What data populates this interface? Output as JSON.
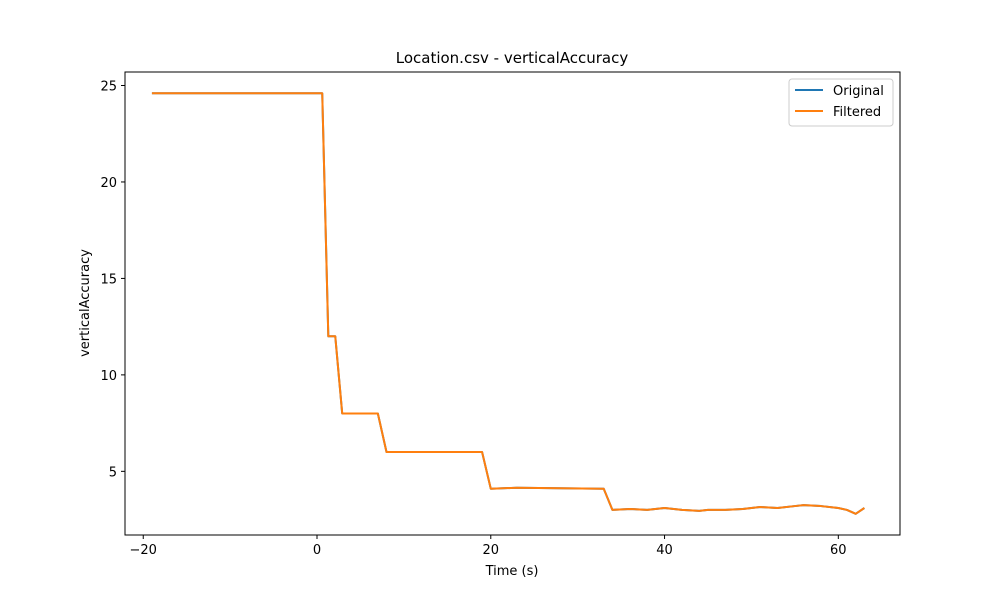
{
  "chart_data": {
    "type": "line",
    "title": "Location.csv - verticalAccuracy",
    "xlabel": "Time (s)",
    "ylabel": "verticalAccuracy",
    "xlim": [
      -22.1,
      67.1
    ],
    "ylim": [
      1.7,
      25.7
    ],
    "xticks": [
      -20,
      0,
      20,
      40,
      60
    ],
    "yticks": [
      5,
      10,
      15,
      20,
      25
    ],
    "xtick_labels": [
      "−20",
      "0",
      "20",
      "40",
      "60"
    ],
    "ytick_labels": [
      "5",
      "10",
      "15",
      "20",
      "25"
    ],
    "grid": false,
    "legend_position": "upper right",
    "series": [
      {
        "name": "Original",
        "color": "#1f77b4",
        "x": [
          -19,
          0.6,
          1.3,
          2.1,
          2.9,
          7,
          8,
          19,
          20,
          23,
          33,
          34,
          36,
          38,
          40,
          42,
          44,
          45,
          47,
          49,
          51,
          53,
          55,
          56,
          58,
          60,
          61,
          62,
          63
        ],
        "y": [
          24.6,
          24.6,
          12.0,
          12.0,
          8.0,
          8.0,
          6.0,
          6.0,
          4.1,
          4.15,
          4.1,
          3.0,
          3.05,
          3.0,
          3.1,
          3.0,
          2.95,
          3.0,
          3.0,
          3.05,
          3.15,
          3.1,
          3.2,
          3.25,
          3.2,
          3.1,
          3.0,
          2.8,
          3.1
        ]
      },
      {
        "name": "Filtered",
        "color": "#ff7f0e",
        "x": [
          -19,
          0.6,
          1.3,
          2.1,
          2.9,
          7,
          8,
          19,
          20,
          23,
          33,
          34,
          36,
          38,
          40,
          42,
          44,
          45,
          47,
          49,
          51,
          53,
          55,
          56,
          58,
          60,
          61,
          62,
          63
        ],
        "y": [
          24.6,
          24.6,
          12.0,
          12.0,
          8.0,
          8.0,
          6.0,
          6.0,
          4.1,
          4.15,
          4.1,
          3.0,
          3.05,
          3.0,
          3.1,
          3.0,
          2.95,
          3.0,
          3.0,
          3.05,
          3.15,
          3.1,
          3.2,
          3.25,
          3.2,
          3.1,
          3.0,
          2.8,
          3.1
        ]
      }
    ]
  }
}
